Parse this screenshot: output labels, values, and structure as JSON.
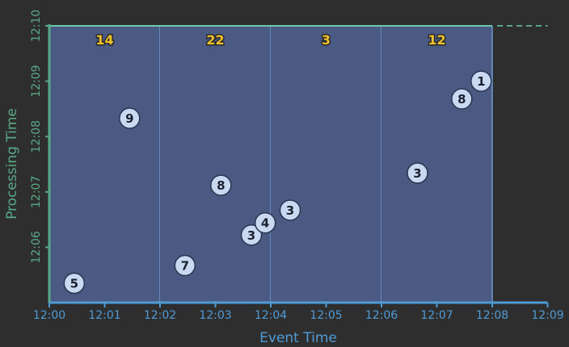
{
  "chart_data": {
    "type": "scatter",
    "xlabel": "Event Time",
    "ylabel": "Processing Time",
    "x_ticks": [
      "12:00",
      "12:01",
      "12:02",
      "12:03",
      "12:04",
      "12:05",
      "12:06",
      "12:07",
      "12:08",
      "12:09"
    ],
    "y_ticks": [
      "12:06",
      "12:07",
      "12:08",
      "12:09",
      "12:10"
    ],
    "xlim": [
      0,
      9
    ],
    "ylim": [
      5,
      10
    ],
    "units": "minutes after 12:00",
    "windows": [
      {
        "start": 0,
        "end": 2,
        "label": "14"
      },
      {
        "start": 2,
        "end": 4,
        "label": "22"
      },
      {
        "start": 4,
        "end": 6,
        "label": "3"
      },
      {
        "start": 6,
        "end": 8,
        "label": "12"
      }
    ],
    "watermark_line": {
      "from_event_time": 8,
      "processing_time": 10
    },
    "points": [
      {
        "event_time": 0.45,
        "processing_time": 5.35,
        "label": "5"
      },
      {
        "event_time": 1.45,
        "processing_time": 8.33,
        "label": "9"
      },
      {
        "event_time": 2.45,
        "processing_time": 5.67,
        "label": "7"
      },
      {
        "event_time": 3.1,
        "processing_time": 7.12,
        "label": "8"
      },
      {
        "event_time": 3.65,
        "processing_time": 6.22,
        "label": "3"
      },
      {
        "event_time": 3.9,
        "processing_time": 6.44,
        "label": "4"
      },
      {
        "event_time": 4.35,
        "processing_time": 6.67,
        "label": "3"
      },
      {
        "event_time": 6.65,
        "processing_time": 7.34,
        "label": "3"
      },
      {
        "event_time": 7.45,
        "processing_time": 8.68,
        "label": "8"
      },
      {
        "event_time": 7.8,
        "processing_time": 9.0,
        "label": "1"
      }
    ],
    "colors": {
      "window_fill": "#4a5a82",
      "window_border": "#6f9ad4",
      "top_border": "#6cc9a6",
      "x_axis": "#4f9bd6",
      "y_axis": "#58a98a",
      "window_label": "#f2c12e"
    }
  }
}
